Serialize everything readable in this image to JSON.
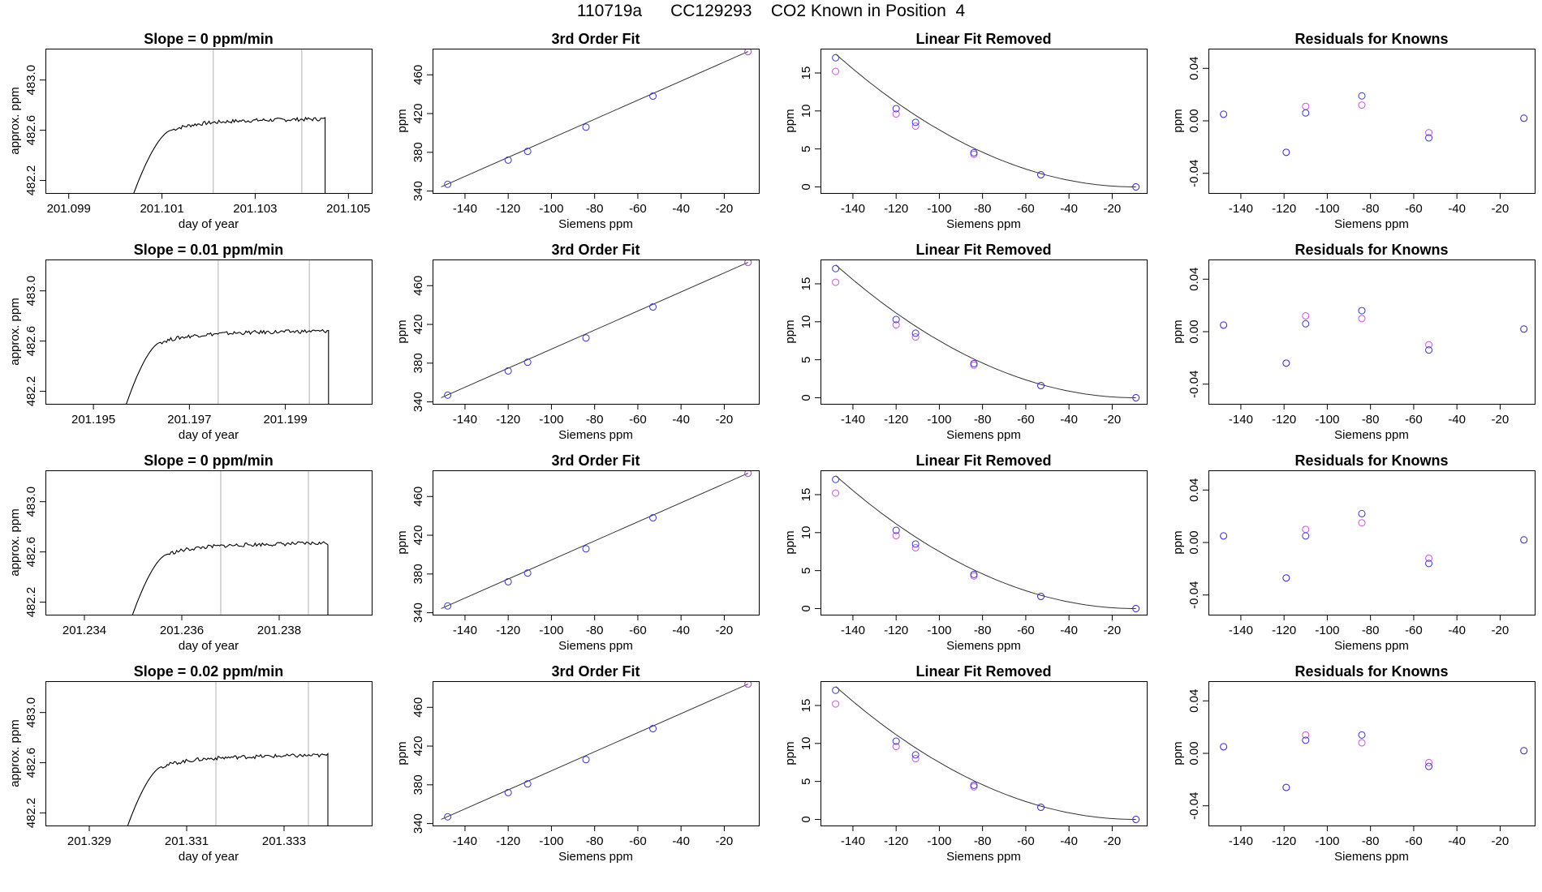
{
  "figure": {
    "title": "110719a      CC129293    CO2 Known in Position  4"
  },
  "colors": {
    "trace": "#000000",
    "vline": "#bebebe",
    "blue": "#3a3acb",
    "magenta": "#cc55dd",
    "fitline": "#333333",
    "frame": "#000000"
  },
  "chart_data": [
    {
      "type": "line",
      "panel": "time",
      "row": 0,
      "title": "Slope =  0  ppm/min",
      "xlabel": "day of year",
      "ylabel": "approx. ppm",
      "xlim": [
        201.0985,
        201.1055
      ],
      "ylim": [
        482.1,
        483.25
      ],
      "xticks": [
        201.099,
        201.101,
        201.103,
        201.105
      ],
      "xdecimals": 3,
      "yticks": [
        482.2,
        482.6,
        483.0
      ],
      "vlines": [
        201.1021,
        201.104
      ],
      "start": 201.1003,
      "rise_end": 201.1012,
      "plateau": 482.67,
      "end": 201.1045,
      "drop_to": 482.05
    },
    {
      "type": "line",
      "panel": "time",
      "row": 1,
      "title": "Slope =  0.01  ppm/min",
      "xlabel": "day of year",
      "ylabel": "approx. ppm",
      "xlim": [
        201.194,
        201.2008
      ],
      "ylim": [
        482.1,
        483.25
      ],
      "xticks": [
        201.195,
        201.197,
        201.199
      ],
      "xdecimals": 3,
      "yticks": [
        482.2,
        482.6,
        483.0
      ],
      "vlines": [
        201.1976,
        201.1995
      ],
      "start": 201.1956,
      "rise_end": 201.1964,
      "plateau": 482.66,
      "end": 201.1999,
      "drop_to": 482.05
    },
    {
      "type": "line",
      "panel": "time",
      "row": 2,
      "title": "Slope =  0  ppm/min",
      "xlabel": "day of year",
      "ylabel": "approx. ppm",
      "xlim": [
        201.2332,
        201.2399
      ],
      "ylim": [
        482.1,
        483.25
      ],
      "xticks": [
        201.234,
        201.236,
        201.238
      ],
      "xdecimals": 3,
      "yticks": [
        482.2,
        482.6,
        483.0
      ],
      "vlines": [
        201.2368,
        201.2386
      ],
      "start": 201.2349,
      "rise_end": 201.2357,
      "plateau": 482.65,
      "end": 201.239,
      "drop_to": 482.05
    },
    {
      "type": "line",
      "panel": "time",
      "row": 3,
      "title": "Slope =  0.02  ppm/min",
      "xlabel": "day of year",
      "ylabel": "approx. ppm",
      "xlim": [
        201.3281,
        201.3348
      ],
      "ylim": [
        482.1,
        483.25
      ],
      "xticks": [
        201.329,
        201.331,
        201.333
      ],
      "xdecimals": 3,
      "yticks": [
        482.2,
        482.6,
        483.0
      ],
      "vlines": [
        201.3316,
        201.3335
      ],
      "start": 201.3297,
      "rise_end": 201.3305,
      "plateau": 482.64,
      "end": 201.3339,
      "drop_to": 482.05
    },
    {
      "type": "scatter",
      "panel": "fit",
      "row": 0,
      "title": "3rd Order Fit",
      "xlabel": "Siemens ppm",
      "ylabel": "ppm",
      "xlim": [
        -155,
        -4
      ],
      "ylim": [
        338,
        487
      ],
      "xticks": [
        -140,
        -120,
        -100,
        -80,
        -60,
        -40,
        -20
      ],
      "yticks": [
        340,
        380,
        420,
        460
      ],
      "points": [
        {
          "x": -148,
          "y": 347
        },
        {
          "x": -120,
          "y": 372
        },
        {
          "x": -111,
          "y": 381
        },
        {
          "x": -84,
          "y": 406
        },
        {
          "x": -53,
          "y": 438
        },
        {
          "x": -9,
          "y": 484
        }
      ]
    },
    {
      "type": "scatter",
      "panel": "fit",
      "row": 1,
      "title": "3rd Order Fit",
      "xlabel": "Siemens ppm",
      "ylabel": "ppm",
      "xlim": [
        -155,
        -4
      ],
      "ylim": [
        338,
        487
      ],
      "xticks": [
        -140,
        -120,
        -100,
        -80,
        -60,
        -40,
        -20
      ],
      "yticks": [
        340,
        380,
        420,
        460
      ],
      "points": [
        {
          "x": -148,
          "y": 347
        },
        {
          "x": -120,
          "y": 372
        },
        {
          "x": -111,
          "y": 381
        },
        {
          "x": -84,
          "y": 406
        },
        {
          "x": -53,
          "y": 438
        },
        {
          "x": -9,
          "y": 484
        }
      ]
    },
    {
      "type": "scatter",
      "panel": "fit",
      "row": 2,
      "title": "3rd Order Fit",
      "xlabel": "Siemens ppm",
      "ylabel": "ppm",
      "xlim": [
        -155,
        -4
      ],
      "ylim": [
        338,
        487
      ],
      "xticks": [
        -140,
        -120,
        -100,
        -80,
        -60,
        -40,
        -20
      ],
      "yticks": [
        340,
        380,
        420,
        460
      ],
      "points": [
        {
          "x": -148,
          "y": 347
        },
        {
          "x": -120,
          "y": 372
        },
        {
          "x": -111,
          "y": 381
        },
        {
          "x": -84,
          "y": 406
        },
        {
          "x": -53,
          "y": 438
        },
        {
          "x": -9,
          "y": 484
        }
      ]
    },
    {
      "type": "scatter",
      "panel": "fit",
      "row": 3,
      "title": "3rd Order Fit",
      "xlabel": "Siemens ppm",
      "ylabel": "ppm",
      "xlim": [
        -155,
        -4
      ],
      "ylim": [
        338,
        487
      ],
      "xticks": [
        -140,
        -120,
        -100,
        -80,
        -60,
        -40,
        -20
      ],
      "yticks": [
        340,
        380,
        420,
        460
      ],
      "points": [
        {
          "x": -148,
          "y": 347
        },
        {
          "x": -120,
          "y": 372
        },
        {
          "x": -111,
          "y": 381
        },
        {
          "x": -84,
          "y": 406
        },
        {
          "x": -53,
          "y": 438
        },
        {
          "x": -9,
          "y": 484
        }
      ]
    },
    {
      "type": "scatter",
      "panel": "linear",
      "row": 0,
      "title": "Linear Fit Removed",
      "xlabel": "Siemens ppm",
      "ylabel": "ppm",
      "xlim": [
        -155,
        -4
      ],
      "ylim": [
        -0.8,
        18.2
      ],
      "xticks": [
        -140,
        -120,
        -100,
        -80,
        -60,
        -40,
        -20
      ],
      "yticks": [
        0,
        5,
        10,
        15
      ],
      "curve": [
        -9,
        0,
        -148,
        17.5
      ],
      "blue": [
        {
          "x": -148,
          "y": 17.0
        },
        {
          "x": -120,
          "y": 10.3
        },
        {
          "x": -111,
          "y": 8.5
        },
        {
          "x": -84,
          "y": 4.5
        },
        {
          "x": -53,
          "y": 1.6
        },
        {
          "x": -9,
          "y": 0
        }
      ],
      "magenta": [
        {
          "x": -148,
          "y": 15.2
        },
        {
          "x": -120,
          "y": 9.6
        },
        {
          "x": -111,
          "y": 8.0
        },
        {
          "x": -84,
          "y": 4.3
        },
        {
          "x": -53,
          "y": 1.6
        },
        {
          "x": -9,
          "y": 0
        }
      ]
    },
    {
      "type": "scatter",
      "panel": "linear",
      "row": 1,
      "title": "Linear Fit Removed",
      "xlabel": "Siemens ppm",
      "ylabel": "ppm",
      "xlim": [
        -155,
        -4
      ],
      "ylim": [
        -0.8,
        18.2
      ],
      "xticks": [
        -140,
        -120,
        -100,
        -80,
        -60,
        -40,
        -20
      ],
      "yticks": [
        0,
        5,
        10,
        15
      ],
      "curve": [
        -9,
        0,
        -148,
        17.5
      ],
      "blue": [
        {
          "x": -148,
          "y": 17.0
        },
        {
          "x": -120,
          "y": 10.3
        },
        {
          "x": -111,
          "y": 8.5
        },
        {
          "x": -84,
          "y": 4.5
        },
        {
          "x": -53,
          "y": 1.6
        },
        {
          "x": -9,
          "y": 0
        }
      ],
      "magenta": [
        {
          "x": -148,
          "y": 15.2
        },
        {
          "x": -120,
          "y": 9.6
        },
        {
          "x": -111,
          "y": 8.0
        },
        {
          "x": -84,
          "y": 4.3
        },
        {
          "x": -53,
          "y": 1.6
        },
        {
          "x": -9,
          "y": 0
        }
      ]
    },
    {
      "type": "scatter",
      "panel": "linear",
      "row": 2,
      "title": "Linear Fit Removed",
      "xlabel": "Siemens ppm",
      "ylabel": "ppm",
      "xlim": [
        -155,
        -4
      ],
      "ylim": [
        -0.8,
        18.2
      ],
      "xticks": [
        -140,
        -120,
        -100,
        -80,
        -60,
        -40,
        -20
      ],
      "yticks": [
        0,
        5,
        10,
        15
      ],
      "curve": [
        -9,
        0,
        -148,
        17.5
      ],
      "blue": [
        {
          "x": -148,
          "y": 17.0
        },
        {
          "x": -120,
          "y": 10.3
        },
        {
          "x": -111,
          "y": 8.5
        },
        {
          "x": -84,
          "y": 4.5
        },
        {
          "x": -53,
          "y": 1.6
        },
        {
          "x": -9,
          "y": 0
        }
      ],
      "magenta": [
        {
          "x": -148,
          "y": 15.2
        },
        {
          "x": -120,
          "y": 9.6
        },
        {
          "x": -111,
          "y": 8.0
        },
        {
          "x": -84,
          "y": 4.3
        },
        {
          "x": -53,
          "y": 1.6
        },
        {
          "x": -9,
          "y": 0
        }
      ]
    },
    {
      "type": "scatter",
      "panel": "linear",
      "row": 3,
      "title": "Linear Fit Removed",
      "xlabel": "Siemens ppm",
      "ylabel": "ppm",
      "xlim": [
        -155,
        -4
      ],
      "ylim": [
        -0.8,
        18.2
      ],
      "xticks": [
        -140,
        -120,
        -100,
        -80,
        -60,
        -40,
        -20
      ],
      "yticks": [
        0,
        5,
        10,
        15
      ],
      "curve": [
        -9,
        0,
        -148,
        17.5
      ],
      "blue": [
        {
          "x": -148,
          "y": 17.0
        },
        {
          "x": -120,
          "y": 10.3
        },
        {
          "x": -111,
          "y": 8.5
        },
        {
          "x": -84,
          "y": 4.5
        },
        {
          "x": -53,
          "y": 1.6
        },
        {
          "x": -9,
          "y": 0
        }
      ],
      "magenta": [
        {
          "x": -148,
          "y": 15.2
        },
        {
          "x": -120,
          "y": 9.6
        },
        {
          "x": -111,
          "y": 8.0
        },
        {
          "x": -84,
          "y": 4.3
        },
        {
          "x": -53,
          "y": 1.6
        },
        {
          "x": -9,
          "y": 0
        }
      ]
    },
    {
      "type": "scatter",
      "panel": "resid",
      "row": 0,
      "title": "Residuals for Knowns",
      "xlabel": "Siemens ppm",
      "ylabel": "ppm",
      "xlim": [
        -155,
        -4
      ],
      "ylim": [
        -0.055,
        0.055
      ],
      "xticks": [
        -140,
        -120,
        -100,
        -80,
        -60,
        -40,
        -20
      ],
      "yticks": [
        -0.04,
        0.0,
        0.04
      ],
      "blue": [
        {
          "x": -148,
          "y": 0.005
        },
        {
          "x": -119,
          "y": -0.024
        },
        {
          "x": -110,
          "y": 0.006
        },
        {
          "x": -84,
          "y": 0.019
        },
        {
          "x": -53,
          "y": -0.013
        },
        {
          "x": -9,
          "y": 0.002
        }
      ],
      "magenta": [
        {
          "x": -148,
          "y": 0.005
        },
        {
          "x": -119,
          "y": -0.024
        },
        {
          "x": -110,
          "y": 0.011
        },
        {
          "x": -84,
          "y": 0.012
        },
        {
          "x": -53,
          "y": -0.009
        },
        {
          "x": -9,
          "y": 0.002
        }
      ]
    },
    {
      "type": "scatter",
      "panel": "resid",
      "row": 1,
      "title": "Residuals for Knowns",
      "xlabel": "Siemens ppm",
      "ylabel": "ppm",
      "xlim": [
        -155,
        -4
      ],
      "ylim": [
        -0.055,
        0.055
      ],
      "xticks": [
        -140,
        -120,
        -100,
        -80,
        -60,
        -40,
        -20
      ],
      "yticks": [
        -0.04,
        0.0,
        0.04
      ],
      "blue": [
        {
          "x": -148,
          "y": 0.005
        },
        {
          "x": -119,
          "y": -0.024
        },
        {
          "x": -110,
          "y": 0.006
        },
        {
          "x": -84,
          "y": 0.016
        },
        {
          "x": -53,
          "y": -0.014
        },
        {
          "x": -9,
          "y": 0.002
        }
      ],
      "magenta": [
        {
          "x": -148,
          "y": 0.005
        },
        {
          "x": -119,
          "y": -0.024
        },
        {
          "x": -110,
          "y": 0.012
        },
        {
          "x": -84,
          "y": 0.01
        },
        {
          "x": -53,
          "y": -0.01
        },
        {
          "x": -9,
          "y": 0.002
        }
      ]
    },
    {
      "type": "scatter",
      "panel": "resid",
      "row": 2,
      "title": "Residuals for Knowns",
      "xlabel": "Siemens ppm",
      "ylabel": "ppm",
      "xlim": [
        -155,
        -4
      ],
      "ylim": [
        -0.055,
        0.055
      ],
      "xticks": [
        -140,
        -120,
        -100,
        -80,
        -60,
        -40,
        -20
      ],
      "yticks": [
        -0.04,
        0.0,
        0.04
      ],
      "blue": [
        {
          "x": -148,
          "y": 0.005
        },
        {
          "x": -119,
          "y": -0.027
        },
        {
          "x": -110,
          "y": 0.005
        },
        {
          "x": -84,
          "y": 0.022
        },
        {
          "x": -53,
          "y": -0.016
        },
        {
          "x": -9,
          "y": 0.002
        }
      ],
      "magenta": [
        {
          "x": -148,
          "y": 0.005
        },
        {
          "x": -119,
          "y": -0.027
        },
        {
          "x": -110,
          "y": 0.01
        },
        {
          "x": -84,
          "y": 0.015
        },
        {
          "x": -53,
          "y": -0.012
        },
        {
          "x": -9,
          "y": 0.002
        }
      ]
    },
    {
      "type": "scatter",
      "panel": "resid",
      "row": 3,
      "title": "Residuals for Knowns",
      "xlabel": "Siemens ppm",
      "ylabel": "ppm",
      "xlim": [
        -155,
        -4
      ],
      "ylim": [
        -0.055,
        0.055
      ],
      "xticks": [
        -140,
        -120,
        -100,
        -80,
        -60,
        -40,
        -20
      ],
      "yticks": [
        -0.04,
        0.0,
        0.04
      ],
      "blue": [
        {
          "x": -148,
          "y": 0.005
        },
        {
          "x": -119,
          "y": -0.026
        },
        {
          "x": -110,
          "y": 0.01
        },
        {
          "x": -84,
          "y": 0.014
        },
        {
          "x": -53,
          "y": -0.01
        },
        {
          "x": -9,
          "y": 0.002
        }
      ],
      "magenta": [
        {
          "x": -148,
          "y": 0.005
        },
        {
          "x": -119,
          "y": -0.026
        },
        {
          "x": -110,
          "y": 0.014
        },
        {
          "x": -84,
          "y": 0.008
        },
        {
          "x": -53,
          "y": -0.007
        },
        {
          "x": -9,
          "y": 0.002
        }
      ]
    }
  ]
}
